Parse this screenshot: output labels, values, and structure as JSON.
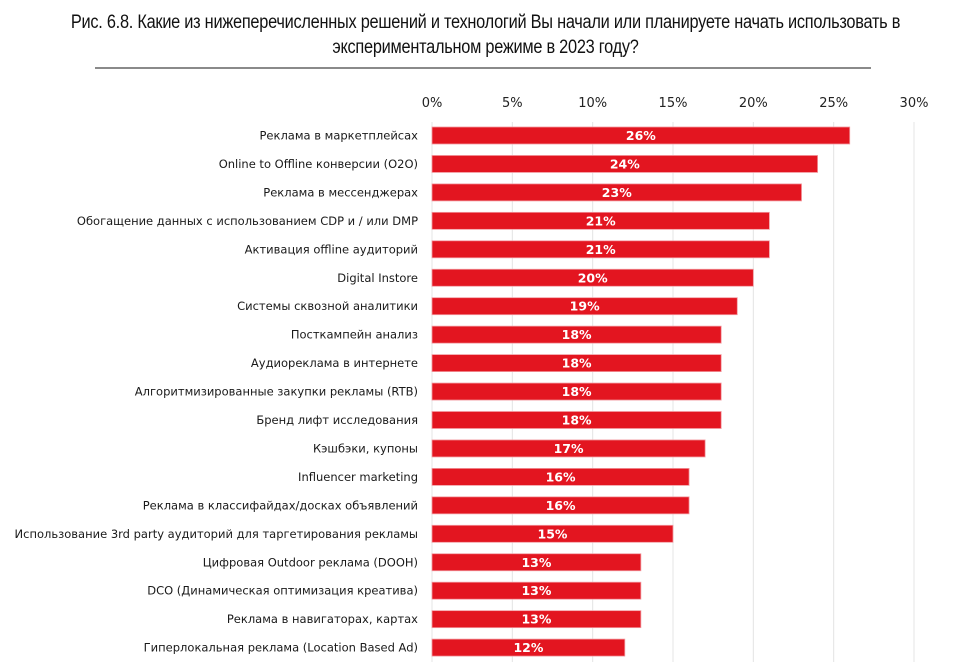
{
  "title": "Рис. 6.8. Какие из нижеперечисленных решений и технологий Вы начали или планируете начать использовать в экспериментальном режиме в 2023 году?",
  "title_lines": [
    "Рис. 6.8. Какие из нижеперечисленных решений и технологий Вы начали или планируете начать использовать в",
    "экспериментальном режиме в 2023 году?"
  ],
  "chart_data": {
    "type": "bar",
    "orientation": "horizontal",
    "title": "Рис. 6.8. Какие из нижеперечисленных решений и технологий Вы начали или планируете начать использовать в экспериментальном режиме в 2023 году?",
    "xlabel": "",
    "ylabel": "",
    "xlim": [
      0,
      30
    ],
    "x_ticks": [
      0,
      5,
      10,
      15,
      20,
      25,
      30
    ],
    "x_tick_labels": [
      "0%",
      "5%",
      "10%",
      "15%",
      "20%",
      "25%",
      "30%"
    ],
    "grid": true,
    "legend": "none",
    "bar_color": "#e31520",
    "categories": [
      "Реклама в маркетплейсах",
      "Online to Offline конверсии (O2O)",
      "Реклама в мессенджерах",
      "Обогащение данных с использованием CDP и / или DMP",
      "Активация offline аудиторий",
      "Digital Instore",
      "Системы сквозной аналитики",
      "Посткампейн анализ",
      "Аудиореклама в интернете",
      "Алгоритмизированные закупки рекламы (RTB)",
      "Бренд лифт исследования",
      "Кэшбэки, купоны",
      "Influencer marketing",
      "Реклама в классифайдах/досках объявлений",
      "Использование 3rd party аудиторий для таргетирования рекламы",
      "Цифровая Outdoor реклама (DOOH)",
      "DCO (Динамическая оптимизация креатива)",
      "Реклама в навигаторах, картах",
      "Гиперлокальная реклама (Location Based Ad)"
    ],
    "values": [
      26,
      24,
      23,
      21,
      21,
      20,
      19,
      18,
      18,
      18,
      18,
      17,
      16,
      16,
      15,
      13,
      13,
      13,
      12
    ],
    "data_labels": [
      "26%",
      "24%",
      "23%",
      "21%",
      "21%",
      "20%",
      "19%",
      "18%",
      "18%",
      "18%",
      "18%",
      "17%",
      "16%",
      "16%",
      "15%",
      "13%",
      "13%",
      "13%",
      "12%"
    ]
  }
}
